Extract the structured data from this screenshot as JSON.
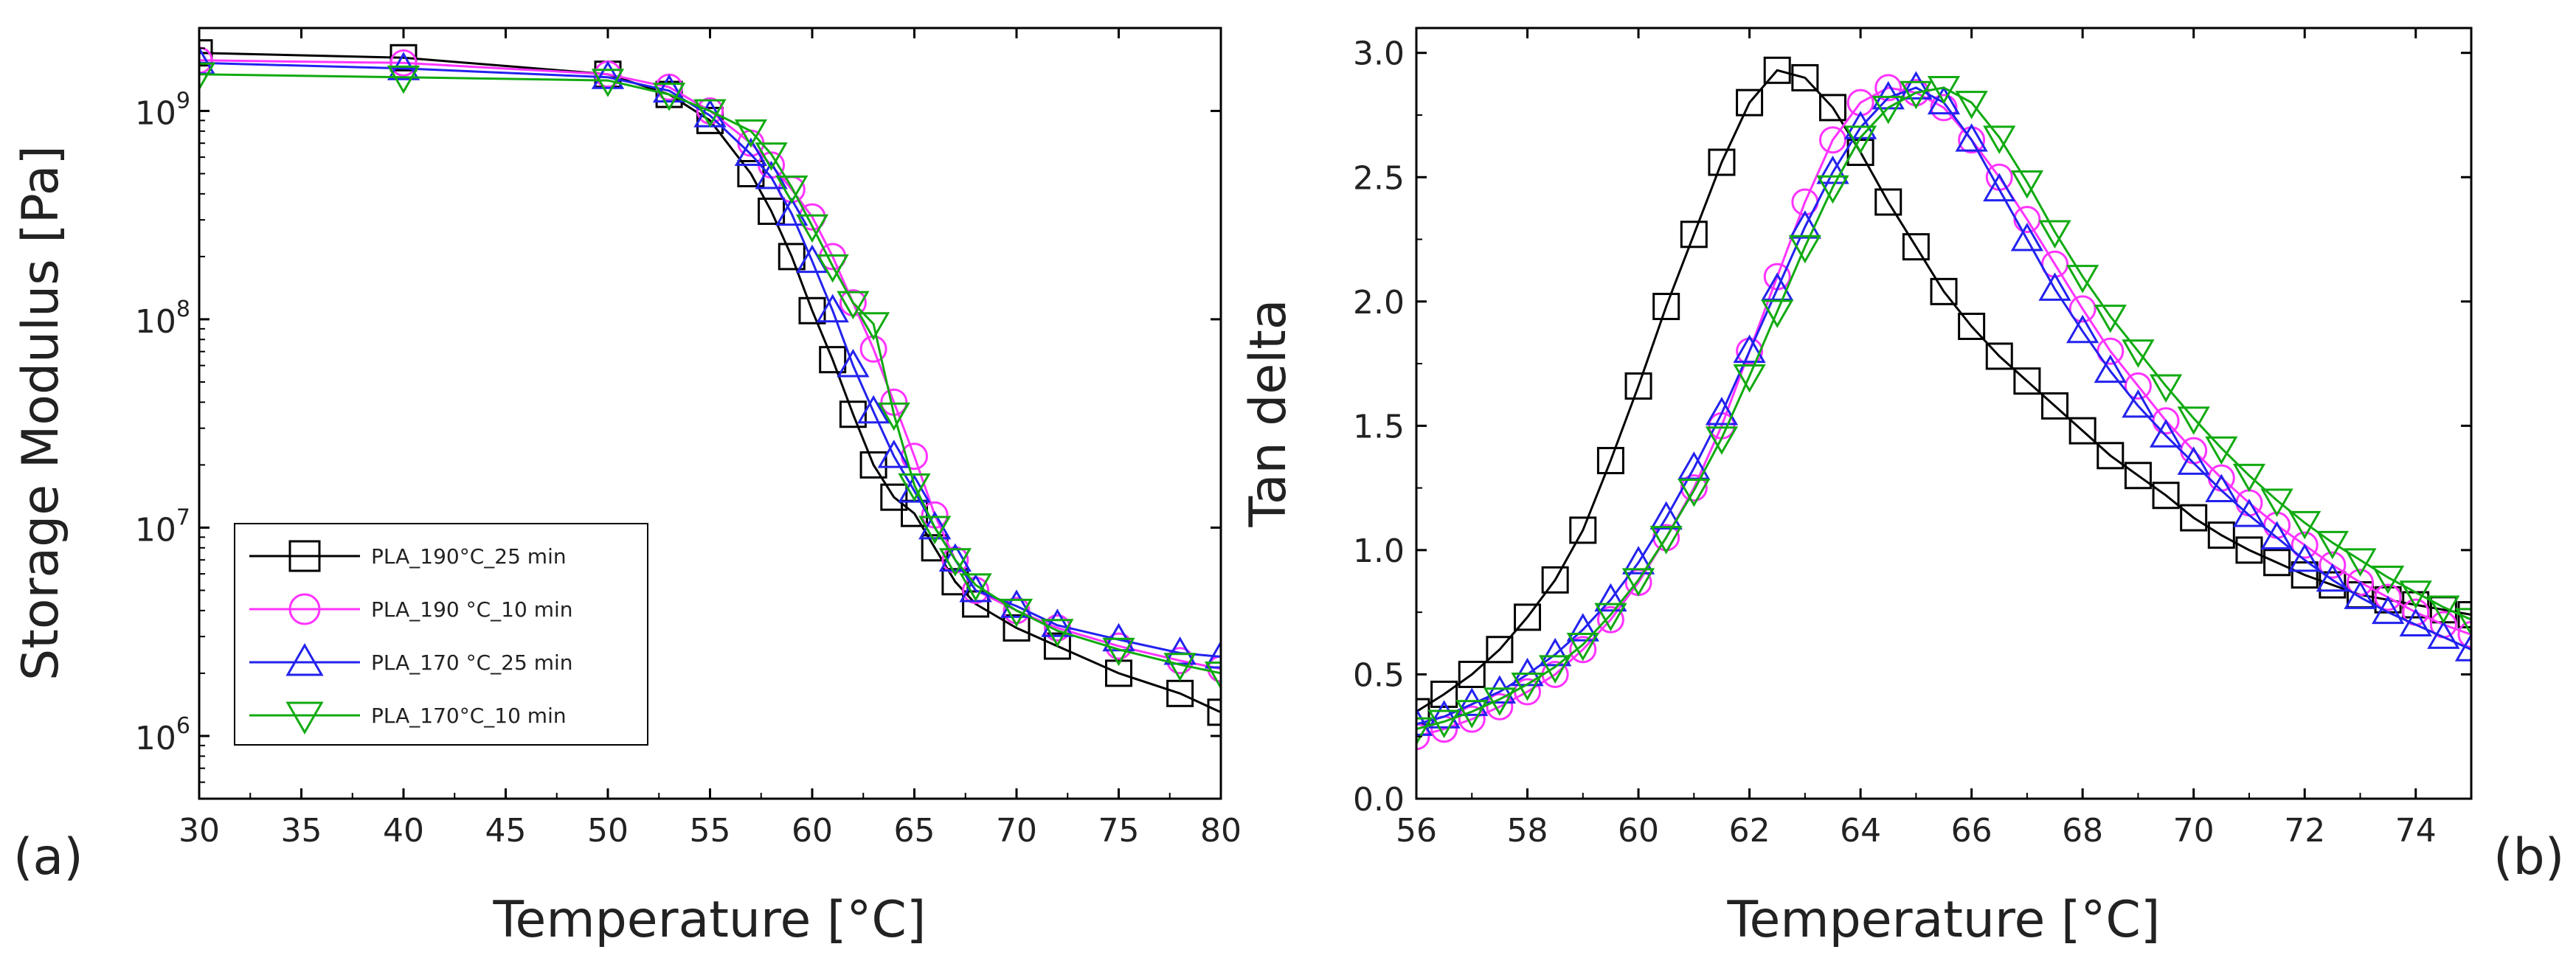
{
  "series_styles": [
    {
      "name": "PLA_190°C_25 min",
      "color": "#000000",
      "marker": "square"
    },
    {
      "name": "PLA_190 °C_10 min",
      "color": "#ff33ff",
      "marker": "circle"
    },
    {
      "name": "PLA_170 °C_25 min",
      "color": "#2222ee",
      "marker": "triangle-up"
    },
    {
      "name": "PLA_170°C_10 min",
      "color": "#11aa11",
      "marker": "triangle-down"
    }
  ],
  "chart_data": [
    {
      "panel_label": "(a)",
      "type": "line",
      "yscale": "log",
      "xlabel": "Temperature [°C]",
      "ylabel": "Storage Modulus [Pa]",
      "xlim": [
        30,
        80
      ],
      "ylim": [
        500000,
        2500000000
      ],
      "xticks": [
        30,
        35,
        40,
        45,
        50,
        55,
        60,
        65,
        70,
        75,
        80
      ],
      "yticks": [
        1000000,
        10000000,
        100000000,
        1000000000
      ],
      "ytick_labels": [
        {
          "base": "10",
          "exp": "6"
        },
        {
          "base": "10",
          "exp": "7"
        },
        {
          "base": "10",
          "exp": "8"
        },
        {
          "base": "10",
          "exp": "9"
        }
      ],
      "legend": {
        "position": "bottom-left"
      },
      "series": [
        {
          "name": "PLA_190°C_25 min",
          "x": [
            30,
            40,
            50,
            53,
            55,
            57,
            58,
            59,
            60,
            61,
            62,
            63,
            64,
            65,
            66,
            67,
            68,
            70,
            72,
            75,
            78,
            80
          ],
          "y": [
            1900000000,
            1800000000,
            1500000000,
            1200000000,
            900000000,
            500000000,
            330000000,
            200000000,
            110000000,
            64000000,
            35000000,
            20000000,
            14000000,
            11700000,
            8000000,
            5500000,
            4300000,
            3300000,
            2700000,
            2000000,
            1600000,
            1300000
          ]
        },
        {
          "name": "PLA_190 °C_10 min",
          "x": [
            30,
            40,
            50,
            53,
            55,
            57,
            58,
            59,
            60,
            61,
            62,
            63,
            64,
            65,
            66,
            67,
            68,
            70,
            72,
            75,
            78,
            80
          ],
          "y": [
            1750000000,
            1700000000,
            1500000000,
            1300000000,
            1000000000,
            700000000,
            550000000,
            420000000,
            310000000,
            200000000,
            120000000,
            72000000,
            40000000,
            22000000,
            11500000,
            7000000,
            5000000,
            4000000,
            3300000,
            2700000,
            2300000,
            2100000
          ]
        },
        {
          "name": "PLA_170 °C_25 min",
          "x": [
            30,
            40,
            50,
            53,
            55,
            57,
            58,
            59,
            60,
            61,
            62,
            63,
            64,
            65,
            66,
            67,
            68,
            70,
            72,
            75,
            78,
            80
          ],
          "y": [
            1700000000,
            1600000000,
            1450000000,
            1250000000,
            950000000,
            620000000,
            480000000,
            320000000,
            190000000,
            110000000,
            60000000,
            36000000,
            22000000,
            15000000,
            10000000,
            7000000,
            5000000,
            4200000,
            3400000,
            2900000,
            2500000,
            2400000
          ]
        },
        {
          "name": "PLA_170°C_10 min",
          "x": [
            30,
            40,
            50,
            53,
            55,
            57,
            58,
            59,
            60,
            61,
            62,
            63,
            64,
            65,
            66,
            67,
            68,
            70,
            72,
            75,
            78,
            80
          ],
          "y": [
            1500000000,
            1450000000,
            1400000000,
            1200000000,
            1000000000,
            800000000,
            620000000,
            430000000,
            280000000,
            180000000,
            120000000,
            95000000,
            35000000,
            16000000,
            10000000,
            7000000,
            5300000,
            4000000,
            3200000,
            2600000,
            2200000,
            2000000
          ]
        }
      ]
    },
    {
      "panel_label": "(b)",
      "type": "line",
      "xlabel": "Temperature [°C]",
      "ylabel": "Tan delta",
      "xlim": [
        56,
        75
      ],
      "ylim": [
        0,
        3.1
      ],
      "xticks": [
        56,
        58,
        60,
        62,
        64,
        66,
        68,
        70,
        72,
        74
      ],
      "yticks": [
        0.0,
        0.5,
        1.0,
        1.5,
        2.0,
        2.5,
        3.0
      ],
      "ytick_labels": [
        "0.0",
        "0.5",
        "1.0",
        "1.5",
        "2.0",
        "2.5",
        "3.0"
      ],
      "series": [
        {
          "name": "PLA_190°C_25 min",
          "x": [
            56,
            56.5,
            57,
            57.5,
            58,
            58.5,
            59,
            59.5,
            60,
            60.5,
            61,
            61.5,
            62,
            62.5,
            63,
            63.5,
            64,
            64.5,
            65,
            65.5,
            66,
            66.5,
            67,
            67.5,
            68,
            68.5,
            69,
            69.5,
            70,
            70.5,
            71,
            71.5,
            72,
            72.5,
            73,
            73.5,
            74,
            74.5,
            75
          ],
          "y": [
            0.35,
            0.42,
            0.5,
            0.6,
            0.73,
            0.88,
            1.08,
            1.36,
            1.66,
            1.98,
            2.27,
            2.56,
            2.8,
            2.93,
            2.9,
            2.78,
            2.6,
            2.4,
            2.22,
            2.04,
            1.9,
            1.78,
            1.68,
            1.58,
            1.48,
            1.38,
            1.3,
            1.22,
            1.13,
            1.06,
            1.0,
            0.95,
            0.9,
            0.86,
            0.82,
            0.8,
            0.78,
            0.76,
            0.74
          ]
        },
        {
          "name": "PLA_190 °C_10 min",
          "x": [
            56,
            56.5,
            57,
            57.5,
            58,
            58.5,
            59,
            59.5,
            60,
            60.5,
            61,
            61.5,
            62,
            62.5,
            63,
            63.5,
            64,
            64.5,
            65,
            65.5,
            66,
            66.5,
            67,
            67.5,
            68,
            68.5,
            69,
            69.5,
            70,
            70.5,
            71,
            71.5,
            72,
            72.5,
            73,
            73.5,
            74,
            74.5,
            75
          ],
          "y": [
            0.25,
            0.28,
            0.32,
            0.37,
            0.43,
            0.5,
            0.6,
            0.72,
            0.87,
            1.05,
            1.25,
            1.5,
            1.8,
            2.1,
            2.4,
            2.65,
            2.8,
            2.86,
            2.84,
            2.78,
            2.65,
            2.5,
            2.33,
            2.15,
            1.97,
            1.8,
            1.66,
            1.52,
            1.4,
            1.29,
            1.19,
            1.1,
            1.02,
            0.94,
            0.87,
            0.81,
            0.75,
            0.7,
            0.66
          ]
        },
        {
          "name": "PLA_170 °C_25 min",
          "x": [
            56,
            56.5,
            57,
            57.5,
            58,
            58.5,
            59,
            59.5,
            60,
            60.5,
            61,
            61.5,
            62,
            62.5,
            63,
            63.5,
            64,
            64.5,
            65,
            65.5,
            66,
            66.5,
            67,
            67.5,
            68,
            68.5,
            69,
            69.5,
            70,
            70.5,
            71,
            71.5,
            72,
            72.5,
            73,
            73.5,
            74,
            74.5,
            75
          ],
          "y": [
            0.3,
            0.33,
            0.38,
            0.43,
            0.5,
            0.58,
            0.68,
            0.8,
            0.95,
            1.13,
            1.33,
            1.55,
            1.8,
            2.05,
            2.3,
            2.52,
            2.7,
            2.82,
            2.86,
            2.8,
            2.65,
            2.45,
            2.25,
            2.05,
            1.88,
            1.72,
            1.58,
            1.46,
            1.35,
            1.24,
            1.14,
            1.05,
            0.96,
            0.88,
            0.81,
            0.75,
            0.7,
            0.65,
            0.6
          ]
        },
        {
          "name": "PLA_170°C_10 min",
          "x": [
            56,
            56.5,
            57,
            57.5,
            58,
            58.5,
            59,
            59.5,
            60,
            60.5,
            61,
            61.5,
            62,
            62.5,
            63,
            63.5,
            64,
            64.5,
            65,
            65.5,
            66,
            66.5,
            67,
            67.5,
            68,
            68.5,
            69,
            69.5,
            70,
            70.5,
            71,
            71.5,
            72,
            72.5,
            73,
            73.5,
            74,
            74.5,
            75
          ],
          "y": [
            0.28,
            0.31,
            0.35,
            0.4,
            0.46,
            0.53,
            0.62,
            0.74,
            0.88,
            1.05,
            1.24,
            1.45,
            1.7,
            1.96,
            2.22,
            2.46,
            2.66,
            2.78,
            2.84,
            2.86,
            2.8,
            2.66,
            2.48,
            2.28,
            2.1,
            1.94,
            1.8,
            1.66,
            1.53,
            1.41,
            1.3,
            1.2,
            1.11,
            1.03,
            0.96,
            0.89,
            0.83,
            0.77,
            0.72
          ]
        }
      ]
    }
  ]
}
